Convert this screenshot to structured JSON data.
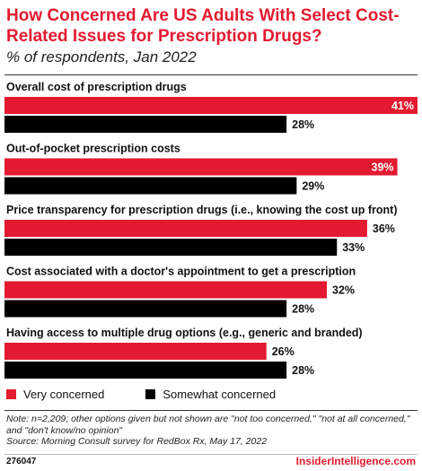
{
  "title": "How Concerned Are US Adults With Select Cost-Related Issues for Prescription Drugs?",
  "subtitle": "% of respondents, Jan 2022",
  "colors": {
    "primary": "#e31a30",
    "secondary": "#000000"
  },
  "chart_data": {
    "type": "bar",
    "orientation": "horizontal",
    "categories": [
      "Overall cost of prescription drugs",
      "Out-of-pocket prescription costs",
      "Price transparency for prescription drugs (i.e., knowing the cost up front)",
      "Cost associated with a doctor's appointment to get a prescription",
      "Having access to multiple drug options (e.g., generic and branded)"
    ],
    "series": [
      {
        "name": "Very concerned",
        "color": "#e31a30",
        "values": [
          41,
          39,
          36,
          32,
          26
        ]
      },
      {
        "name": "Somewhat concerned",
        "color": "#000000",
        "values": [
          28,
          29,
          33,
          28,
          28
        ]
      }
    ],
    "value_suffix": "%",
    "xlim": [
      0,
      41
    ],
    "grid": false,
    "legend_position": "bottom-left"
  },
  "legend": [
    {
      "label": "Very concerned",
      "color": "#e31a30"
    },
    {
      "label": "Somewhat concerned",
      "color": "#000000"
    }
  ],
  "note": "Note: n=2,209; other options given but not shown are \"not too concerned,\" \"not at all concerned,\" and \"don't know/no opinion\"",
  "source": "Source: Morning Consult survey for RedBox Rx, May 17, 2022",
  "footer": {
    "id": "276047",
    "brand": "InsiderIntelligence.com"
  }
}
